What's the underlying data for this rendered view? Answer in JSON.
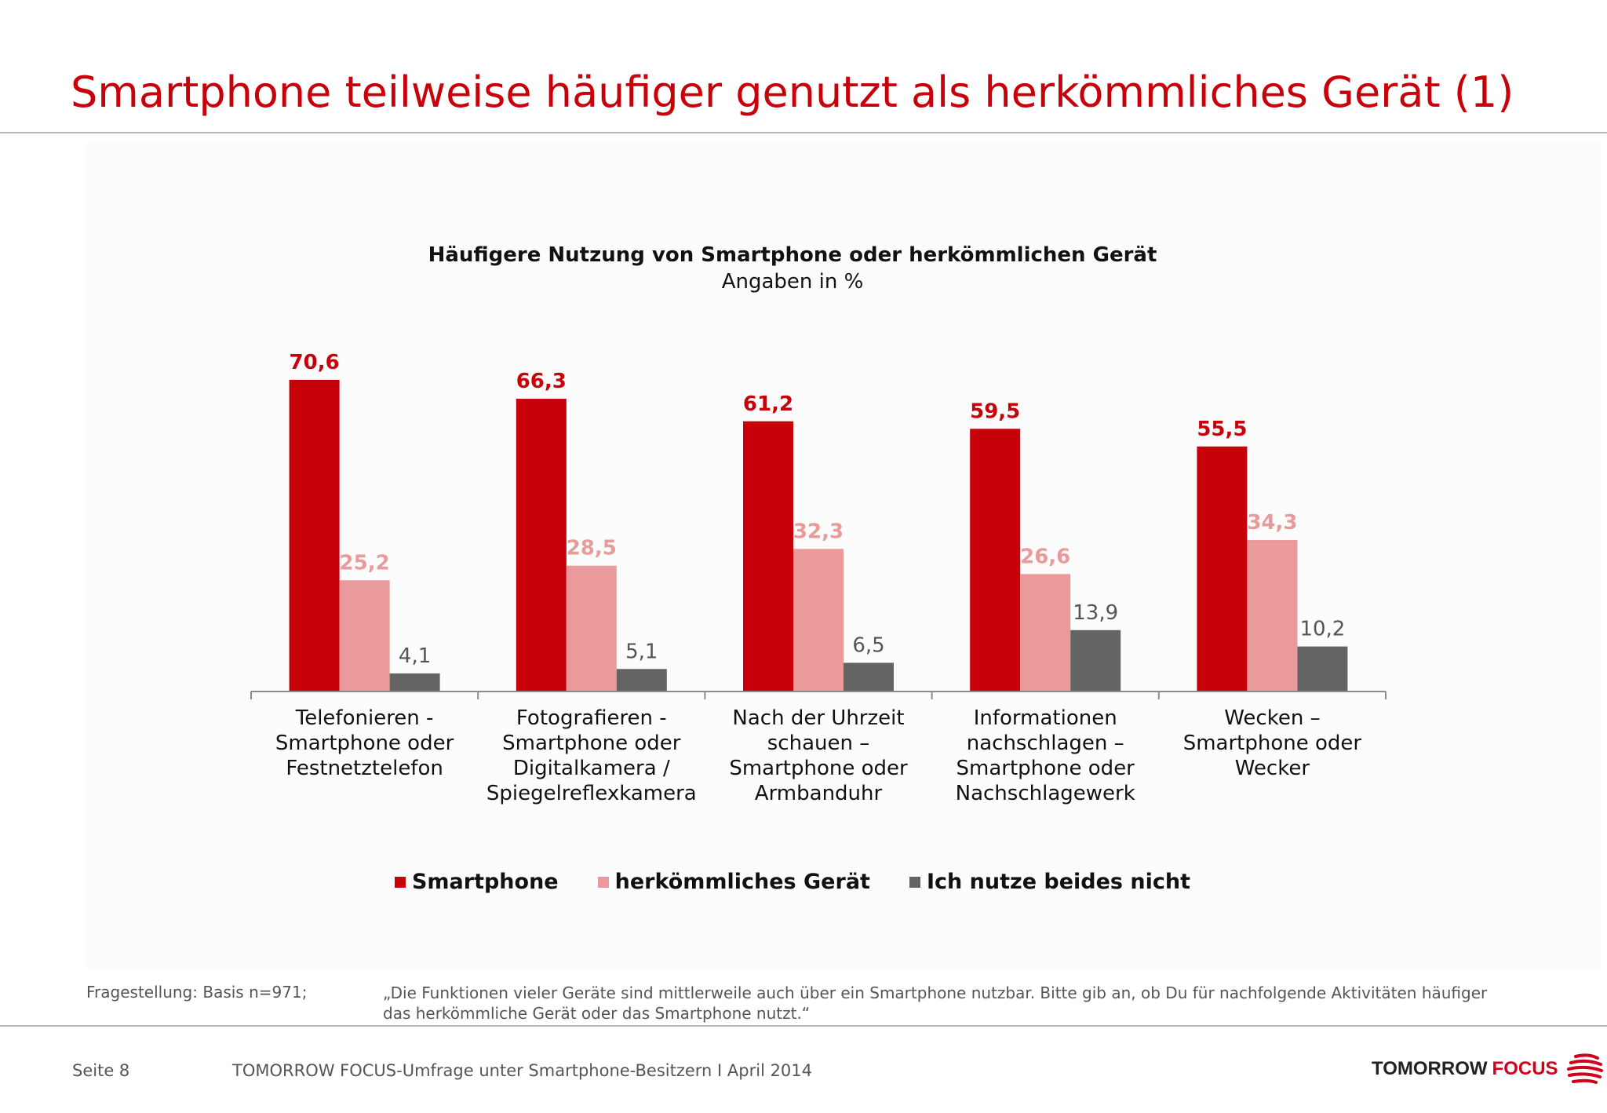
{
  "header": {
    "title": "Smartphone teilweise häufiger genutzt als herkömmliches Gerät (1)"
  },
  "chart_data": {
    "type": "bar",
    "title": "Häufigere Nutzung von Smartphone oder herkömmlichen Gerät",
    "subtitle": "Angaben in %",
    "categories": [
      [
        "Telefonieren -",
        "Smartphone oder",
        "Festnetztelefon"
      ],
      [
        "Fotografieren -",
        "Smartphone oder",
        "Digitalkamera /",
        "Spiegelreflexkamera"
      ],
      [
        "Nach der Uhrzeit",
        "schauen –",
        "Smartphone oder",
        "Armbanduhr"
      ],
      [
        "Informationen",
        "nachschlagen –",
        "Smartphone oder",
        "Nachschlagewerk"
      ],
      [
        "Wecken –",
        "Smartphone oder",
        "Wecker"
      ]
    ],
    "series": [
      {
        "name": "Smartphone",
        "color": "#c8000a",
        "label_color": "#c8000a",
        "label_bold": true,
        "values": [
          70.6,
          66.3,
          61.2,
          59.5,
          55.5
        ],
        "labels": [
          "70,6",
          "66,3",
          "61,2",
          "59,5",
          "55,5"
        ]
      },
      {
        "name": "herkömmliches Gerät",
        "color": "#ea9a9a",
        "label_color": "#e99a9a",
        "label_bold": true,
        "values": [
          25.2,
          28.5,
          32.3,
          26.6,
          34.3
        ],
        "labels": [
          "25,2",
          "28,5",
          "32,3",
          "26,6",
          "34,3"
        ]
      },
      {
        "name": "Ich nutze beides nicht",
        "color": "#656465",
        "label_color": "#555555",
        "label_bold": false,
        "values": [
          4.1,
          5.1,
          6.5,
          13.9,
          10.2
        ],
        "labels": [
          "4,1",
          "5,1",
          "6,5",
          "13,9",
          "10,2"
        ]
      }
    ],
    "ylim": [
      0,
      80
    ],
    "grid": false,
    "legend_position": "bottom"
  },
  "footnote": {
    "label": "Fragestellung: Basis n=971;",
    "text": "„Die Funktionen vieler Geräte sind mittlerweile auch über ein Smartphone nutzbar. Bitte gib an, ob Du für nachfolgende Aktivitäten häufiger das herkömmliche Gerät oder das Smartphone nutzt.“"
  },
  "footer": {
    "page": "Seite 8",
    "source": "TOMORROW FOCUS-Umfrage unter Smartphone-Besitzern I April 2014",
    "logo_part1": "TOMORROW",
    "logo_part2": "FOCUS"
  }
}
